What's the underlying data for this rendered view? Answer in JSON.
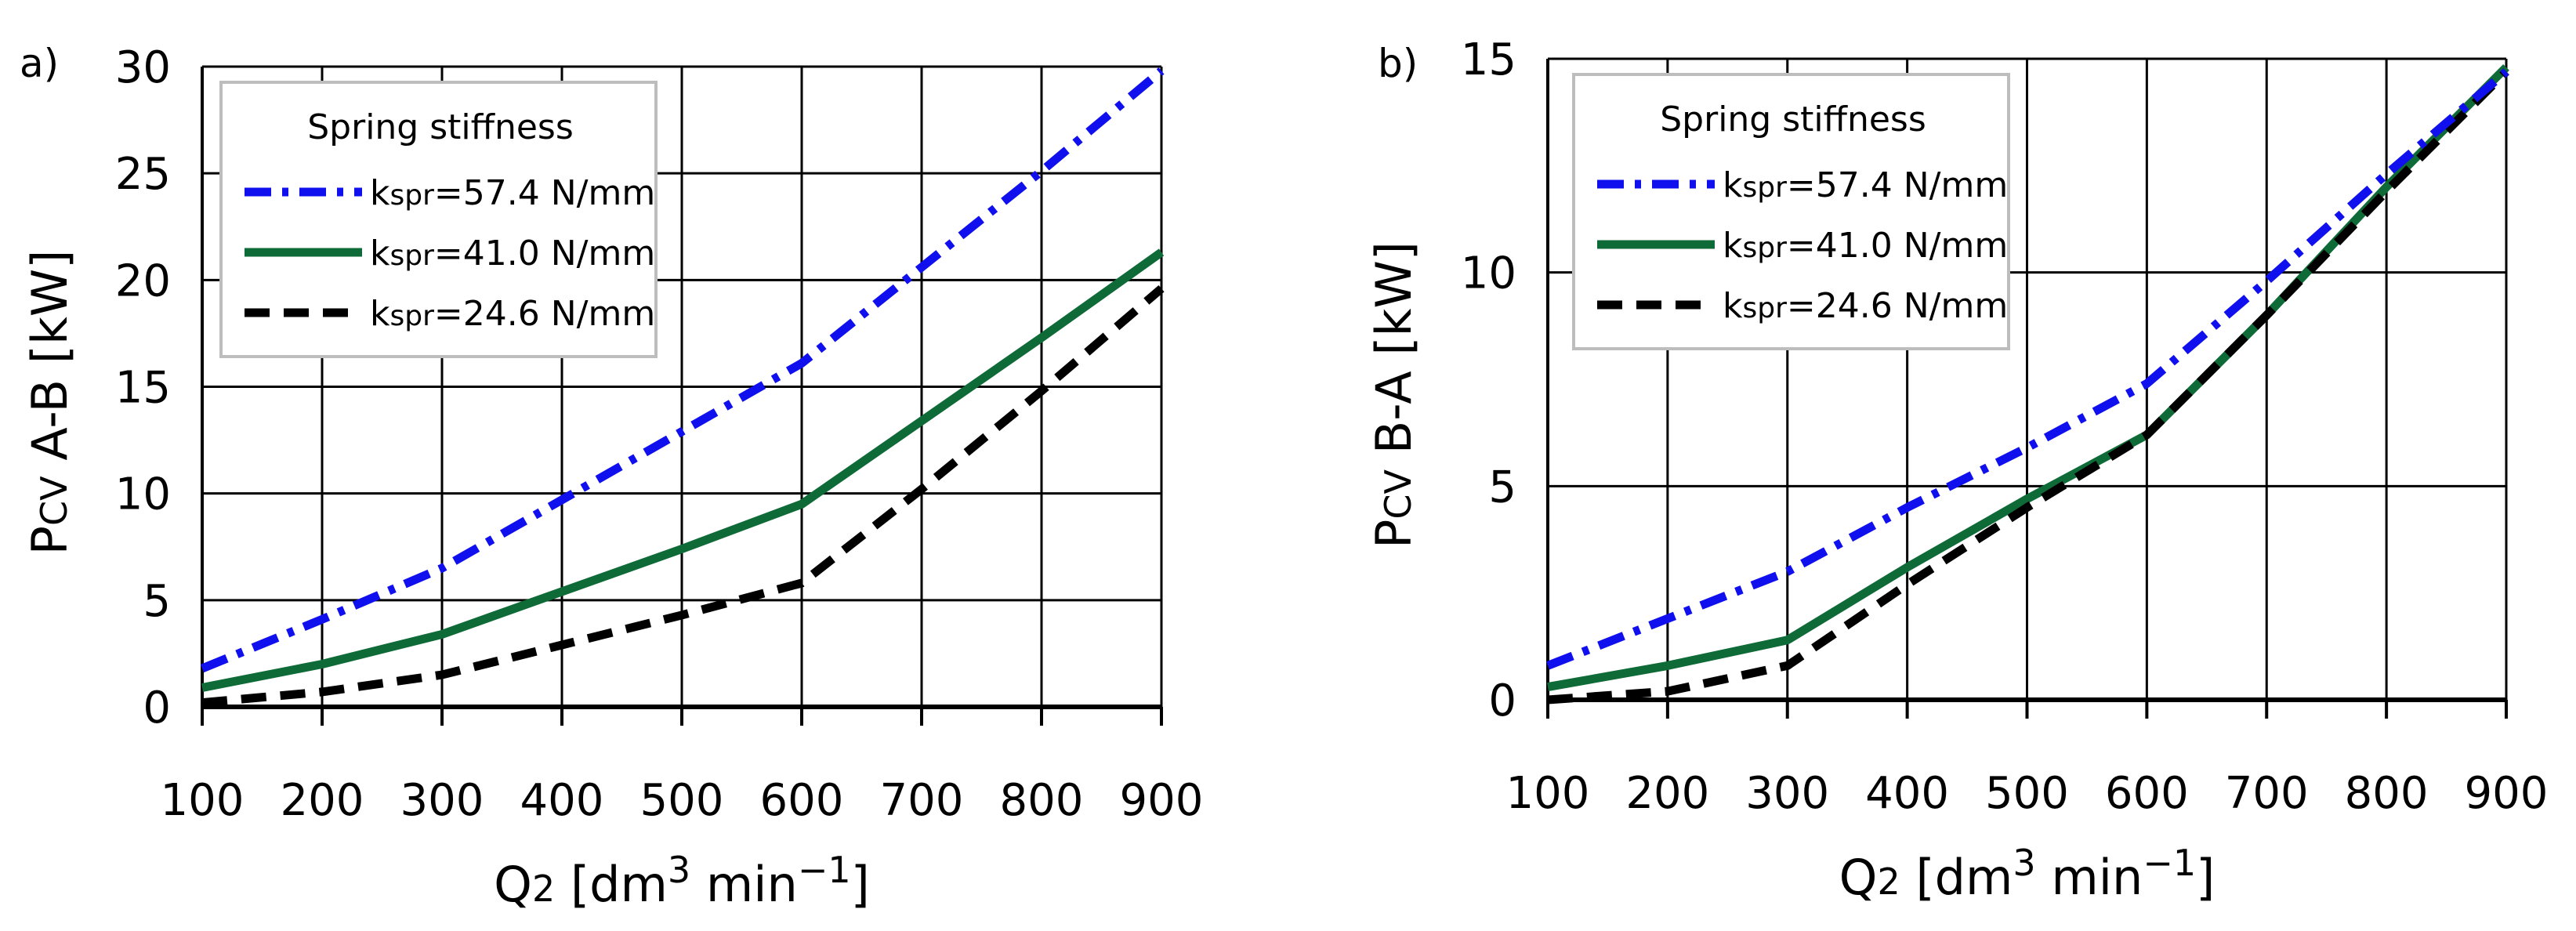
{
  "chart_data": [
    {
      "panel": "a)",
      "type": "line",
      "ylabel": {
        "main": "P",
        "sub": "CV",
        "rest": "A-B  [kW]"
      },
      "xlabel": {
        "main": "Q",
        "sub": "2",
        "rest_before_sup": " [dm",
        "sup": "3",
        "rest_mid": " min",
        "sup2": "−1",
        "rest_end": "]"
      },
      "xlim": [
        100,
        900
      ],
      "ylim": [
        0,
        30
      ],
      "xticks": [
        100,
        200,
        300,
        400,
        500,
        600,
        700,
        800,
        900
      ],
      "yticks": [
        0,
        5,
        10,
        15,
        20,
        25,
        30
      ],
      "grid": true,
      "legend": {
        "title": "Spring stiffness",
        "placement": "top-left"
      },
      "x": [
        100,
        200,
        300,
        400,
        500,
        600,
        700,
        800,
        900
      ],
      "series": [
        {
          "name_main": "k",
          "name_sub": "spr",
          "name_rest": "=57.4 N/mm",
          "color": "#1010ee",
          "style": "dashdot",
          "values": [
            1.8,
            4.1,
            6.5,
            9.7,
            12.9,
            16.1,
            20.6,
            25.1,
            29.8
          ]
        },
        {
          "name_main": "k",
          "name_sub": "spr",
          "name_rest": "=41.0 N/mm",
          "color": "#0e6a36",
          "style": "solid",
          "values": [
            0.9,
            2.0,
            3.4,
            5.4,
            7.4,
            9.5,
            13.4,
            17.3,
            21.3
          ]
        },
        {
          "name_main": "k",
          "name_sub": "spr",
          "name_rest": "=24.6 N/mm",
          "color": "#000000",
          "style": "dashed",
          "values": [
            0.2,
            0.7,
            1.5,
            2.9,
            4.3,
            5.8,
            10.2,
            14.8,
            19.6
          ]
        }
      ]
    },
    {
      "panel": "b)",
      "type": "line",
      "ylabel": {
        "main": "P",
        "sub": "CV",
        "rest": "B-A  [kW]"
      },
      "xlabel": {
        "main": "Q",
        "sub": "2",
        "rest_before_sup": " [dm",
        "sup": "3",
        "rest_mid": " min",
        "sup2": "−1",
        "rest_end": "]"
      },
      "xlim": [
        100,
        900
      ],
      "ylim": [
        0,
        15
      ],
      "xticks": [
        100,
        200,
        300,
        400,
        500,
        600,
        700,
        800,
        900
      ],
      "yticks": [
        0,
        5,
        10,
        15
      ],
      "grid": true,
      "legend": {
        "title": "Spring stiffness",
        "placement": "top-left"
      },
      "x": [
        100,
        200,
        300,
        400,
        500,
        600,
        700,
        800,
        900
      ],
      "series": [
        {
          "name_main": "k",
          "name_sub": "spr",
          "name_rest": "=57.4 N/mm",
          "color": "#1010ee",
          "style": "dashdot",
          "values": [
            0.8,
            1.9,
            3.0,
            4.5,
            5.9,
            7.4,
            9.8,
            12.3,
            14.7
          ]
        },
        {
          "name_main": "k",
          "name_sub": "spr",
          "name_rest": "=41.0 N/mm",
          "color": "#0e6a36",
          "style": "solid",
          "values": [
            0.3,
            0.8,
            1.4,
            3.1,
            4.7,
            6.2,
            9.0,
            12.0,
            14.8
          ]
        },
        {
          "name_main": "k",
          "name_sub": "spr",
          "name_rest": "=24.6 N/mm",
          "color": "#000000",
          "style": "dashed",
          "values": [
            0.0,
            0.2,
            0.8,
            2.7,
            4.5,
            6.2,
            9.0,
            11.9,
            14.7
          ]
        }
      ]
    }
  ]
}
